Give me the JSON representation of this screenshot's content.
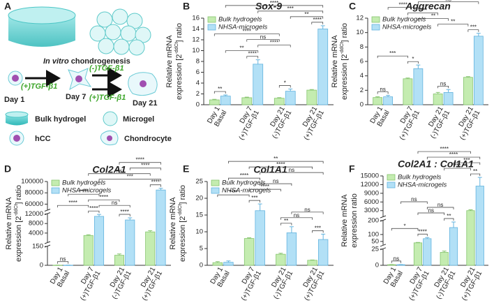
{
  "panel_labels": [
    "A",
    "B",
    "C",
    "D",
    "E",
    "F"
  ],
  "diagram": {
    "caption_italic": "In vitro",
    "caption": "chondrogenesis",
    "arrow_1": "(+)TGF-β1",
    "arrow_2": "(-)TGF-β1",
    "arrow_3": "(+)TGF-β1",
    "day_1": "Day 1",
    "day_7": "Day 7",
    "day_21": "Day 21",
    "legend": [
      "Bulk hydrogel",
      "Microgel",
      "hCC",
      "Chondrocyte"
    ]
  },
  "chart_data": [
    {
      "type": "bar",
      "title": "Sox-9",
      "y_label": {
        "line1": "Relative mRNA",
        "line2": "expression [2",
        "sup": "-ddCt",
        "end": "] ratio"
      },
      "categories": [
        "Day 1",
        "Day 7",
        "Day 21",
        "Day 21"
      ],
      "conditions": [
        "Basal",
        "(+)TGF-β1",
        "(-)TGF-β1",
        "(+)TGF-β1"
      ],
      "series": [
        {
          "name": "Bulk hydrogels",
          "color": "#c4ecb0",
          "edge": "#86c46e",
          "values": [
            0.9,
            1.3,
            1.2,
            2.7
          ],
          "errors": [
            0.1,
            0.1,
            0.1,
            0.1
          ]
        },
        {
          "name": "NHSA-microgels",
          "color": "#b2e0f6",
          "edge": "#62b3de",
          "values": [
            1.6,
            7.5,
            2.5,
            14.0
          ],
          "errors": [
            0.2,
            0.8,
            0.4,
            0.6
          ]
        }
      ],
      "ylim": [
        0,
        16
      ],
      "yticks": [
        0,
        2,
        4,
        6,
        8,
        10,
        12,
        14,
        16
      ],
      "legend": "upper left",
      "annotations": [
        {
          "label": "**",
          "bars": [
            0,
            1
          ]
        },
        {
          "label": "****",
          "bars": [
            2,
            3
          ]
        },
        {
          "label": "*",
          "bars": [
            4,
            5
          ]
        },
        {
          "label": "****",
          "bars": [
            6,
            7
          ]
        },
        {
          "label": "**",
          "bars": [
            1,
            3
          ]
        },
        {
          "label": "****",
          "bars": [
            3,
            5
          ]
        },
        {
          "label": "ns",
          "bars": [
            2,
            4
          ]
        },
        {
          "label": "****",
          "bars": [
            0,
            4
          ]
        },
        {
          "label": "**",
          "bars": [
            5,
            7
          ]
        },
        {
          "label": "***",
          "bars": [
            3,
            7
          ]
        },
        {
          "label": "****",
          "bars": [
            1,
            7
          ]
        }
      ]
    },
    {
      "type": "bar",
      "title": "Aggrecan",
      "y_label": {
        "line1": "Relative mRNA",
        "line2": "expression [2",
        "sup": "-ddCt",
        "end": "] ratio"
      },
      "categories": [
        "Day 1",
        "Day 7",
        "Day 21",
        "Day 21"
      ],
      "conditions": [
        "Basal",
        "(+)TGF-β1",
        "(-)TGF-β1",
        "(+)TGF-β1"
      ],
      "series": [
        {
          "name": "Bulk hydrogels",
          "color": "#c4ecb0",
          "edge": "#86c46e",
          "values": [
            1.0,
            3.6,
            1.5,
            3.8
          ],
          "errors": [
            0.1,
            0.1,
            0.2,
            0.1
          ]
        },
        {
          "name": "NHSA-microgels",
          "color": "#b2e0f6",
          "edge": "#62b3de",
          "values": [
            1.1,
            5.0,
            1.7,
            9.5
          ],
          "errors": [
            0.2,
            0.5,
            0.4,
            0.4
          ]
        }
      ],
      "ylim": [
        0,
        12
      ],
      "yticks": [
        0,
        2,
        4,
        6,
        8,
        10,
        12
      ],
      "legend": "upper left",
      "annotations": [
        {
          "label": "ns",
          "bars": [
            0,
            1
          ]
        },
        {
          "label": "*",
          "bars": [
            2,
            3
          ]
        },
        {
          "label": "ns",
          "bars": [
            4,
            5
          ]
        },
        {
          "label": "***",
          "bars": [
            6,
            7
          ]
        },
        {
          "label": "**",
          "bars": [
            4,
            6
          ]
        },
        {
          "label": "**",
          "bars": [
            3,
            5
          ]
        },
        {
          "label": "***",
          "bars": [
            0,
            2
          ]
        },
        {
          "label": "****",
          "bars": [
            2,
            4
          ]
        },
        {
          "label": "****",
          "bars": [
            1,
            3
          ]
        },
        {
          "label": "ns",
          "bars": [
            3,
            7
          ]
        },
        {
          "label": "**",
          "bars": [
            2,
            6
          ]
        },
        {
          "label": "****",
          "bars": [
            5,
            7
          ]
        }
      ]
    },
    {
      "type": "bar",
      "title": "Col2A1",
      "y_label": {
        "line1": "Relative mRNA",
        "line2": "expression [2",
        "sup": "-ddCt",
        "end": "] ratio"
      },
      "categories": [
        "Day 1",
        "Day 7",
        "Day 21",
        "Day 21"
      ],
      "conditions": [
        "Basal",
        "(+)TGF-β1",
        "(-)TGF-β1",
        "(+)TGF-β1"
      ],
      "series": [
        {
          "name": "Bulk hydrogels",
          "color": "#c4ecb0",
          "edge": "#86c46e",
          "values": [
            1,
            3000,
            80,
            4500
          ],
          "errors": [
            0.5,
            300,
            10,
            500
          ]
        },
        {
          "name": "NHSA-microgels",
          "color": "#b2e0f6",
          "edge": "#62b3de",
          "values": [
            1,
            11000,
            9500,
            85000
          ],
          "errors": [
            0.5,
            800,
            900,
            3000
          ]
        }
      ],
      "y_segments": [
        {
          "ylim": [
            0,
            150
          ],
          "yticks": [
            0,
            150
          ]
        },
        {
          "ylim": [
            150,
            12000
          ],
          "yticks": [
            4000,
            8000,
            12000
          ]
        },
        {
          "ylim": [
            50000,
            100000
          ],
          "yticks": [
            60000,
            80000,
            100000
          ]
        }
      ],
      "legend": "upper left",
      "annotations": [
        {
          "label": "ns",
          "bars": [
            0,
            1
          ]
        },
        {
          "label": "****",
          "bars": [
            2,
            3
          ]
        },
        {
          "label": "****",
          "bars": [
            4,
            5
          ]
        },
        {
          "label": "****",
          "bars": [
            6,
            7
          ]
        },
        {
          "label": "****",
          "bars": [
            0,
            2
          ]
        },
        {
          "label": "ns",
          "bars": [
            3,
            5
          ]
        },
        {
          "label": "****",
          "bars": [
            2,
            4
          ]
        },
        {
          "label": "****",
          "bars": [
            1,
            3
          ]
        },
        {
          "label": "***",
          "bars": [
            3,
            7
          ]
        },
        {
          "label": "ns",
          "bars": [
            2,
            6
          ]
        },
        {
          "label": "****",
          "bars": [
            5,
            7
          ]
        },
        {
          "label": "****",
          "bars": [
            4,
            7
          ]
        }
      ]
    },
    {
      "type": "bar",
      "title": "Col1A1",
      "y_label": {
        "line1": "Relative mRNA",
        "line2": "expression [2",
        "sup": "-ddCt",
        "end": "] ratio"
      },
      "categories": [
        "Day 1",
        "Day 7",
        "Day 21",
        "Day 21"
      ],
      "conditions": [
        "Basal",
        "(+)TGF-β1",
        "(-)TGF-β1",
        "(+)TGF-β1"
      ],
      "series": [
        {
          "name": "Bulk hydrogels",
          "color": "#c4ecb0",
          "edge": "#86c46e",
          "values": [
            0.8,
            8.0,
            3.3,
            1.5
          ],
          "errors": [
            0.3,
            0.2,
            0.3,
            0.1
          ]
        },
        {
          "name": "NHSA-microgels",
          "color": "#b2e0f6",
          "edge": "#62b3de",
          "values": [
            0.9,
            16.3,
            9.7,
            7.7
          ],
          "errors": [
            0.4,
            2.0,
            1.8,
            1.6
          ]
        }
      ],
      "ylim": [
        0,
        25
      ],
      "yticks": [
        0,
        5,
        10,
        15,
        20,
        25
      ],
      "legend": "upper left",
      "annotations": [
        {
          "label": "***",
          "bars": [
            2,
            3
          ]
        },
        {
          "label": "**",
          "bars": [
            4,
            5
          ]
        },
        {
          "label": "***",
          "bars": [
            6,
            7
          ]
        },
        {
          "label": "****",
          "bars": [
            0,
            2
          ]
        },
        {
          "label": "ns",
          "bars": [
            4,
            6
          ]
        },
        {
          "label": "ns",
          "bars": [
            5,
            7
          ]
        },
        {
          "label": "****",
          "bars": [
            2,
            4
          ]
        },
        {
          "label": "ns",
          "bars": [
            3,
            5
          ]
        },
        {
          "label": "****",
          "bars": [
            1,
            3
          ]
        },
        {
          "label": "ns",
          "bars": [
            3,
            7
          ]
        },
        {
          "label": "****",
          "bars": [
            2,
            6
          ]
        },
        {
          "label": "**",
          "bars": [
            1,
            7
          ]
        }
      ]
    },
    {
      "type": "bar",
      "title": "Col2A1 : Col1A1",
      "y_label": {
        "line1": "Relative mRNA",
        "line2": "expression ratio"
      },
      "categories": [
        "Day 1",
        "Day 7",
        "Day 21",
        "Day 21"
      ],
      "conditions": [
        "Basal",
        "(+)TGF-β1",
        "(-)TGF-β1",
        "(+)TGF-β1"
      ],
      "series": [
        {
          "name": "Bulk hydrogels",
          "color": "#c4ecb0",
          "edge": "#86c46e",
          "values": [
            1,
            40,
            20,
            3000
          ],
          "errors": [
            0.2,
            3,
            2,
            300
          ]
        },
        {
          "name": "NHSA-microgels",
          "color": "#b2e0f6",
          "edge": "#62b3de",
          "values": [
            1,
            70,
            150,
            11500
          ],
          "errors": [
            0.2,
            8,
            40,
            3000
          ]
        }
      ],
      "y_segments": [
        {
          "ylim": [
            0,
            25
          ],
          "yticks": [
            0,
            25
          ]
        },
        {
          "ylim": [
            25,
            200
          ],
          "yticks": [
            50,
            100,
            200
          ]
        },
        {
          "ylim": [
            1000,
            15000
          ],
          "yticks": [
            3000,
            6000,
            9000,
            12000,
            15000
          ]
        }
      ],
      "legend": "upper left",
      "annotations": [
        {
          "label": "ns",
          "bars": [
            0,
            1
          ]
        },
        {
          "label": "****",
          "bars": [
            2,
            3
          ]
        },
        {
          "label": "**",
          "bars": [
            4,
            5
          ]
        },
        {
          "label": "**",
          "bars": [
            6,
            7
          ]
        },
        {
          "label": "*",
          "bars": [
            0,
            2
          ]
        },
        {
          "label": "ns",
          "bars": [
            2,
            4
          ]
        },
        {
          "label": "ns",
          "bars": [
            3,
            5
          ]
        },
        {
          "label": "ns",
          "bars": [
            1,
            3
          ]
        },
        {
          "label": "***",
          "bars": [
            4,
            6
          ]
        },
        {
          "label": "***",
          "bars": [
            5,
            7
          ]
        },
        {
          "label": "****",
          "bars": [
            3,
            7
          ]
        },
        {
          "label": "****",
          "bars": [
            2,
            6
          ]
        }
      ]
    }
  ]
}
